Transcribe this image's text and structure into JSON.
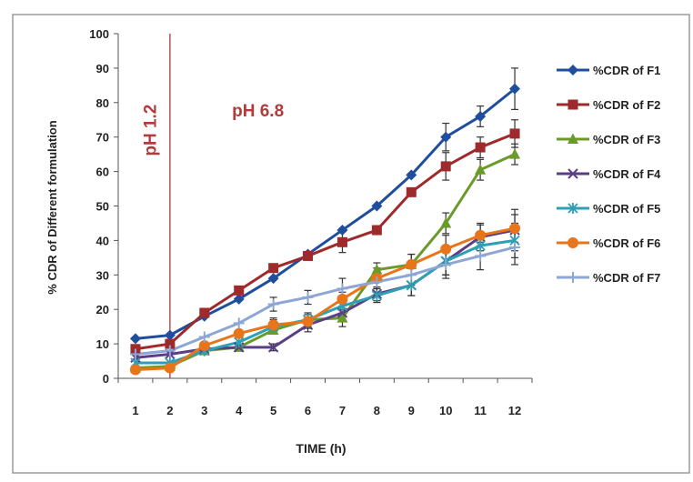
{
  "chart_data": {
    "type": "line",
    "title": "",
    "xlabel": "TIME (h)",
    "ylabel": "% CDR of Different formulation",
    "x": [
      1,
      2,
      3,
      4,
      5,
      6,
      7,
      8,
      9,
      10,
      11,
      12
    ],
    "xlim": [
      0.5,
      12.5
    ],
    "ylim": [
      0,
      100
    ],
    "yticks": [
      0,
      10,
      20,
      30,
      40,
      50,
      60,
      70,
      80,
      90,
      100
    ],
    "grid": false,
    "legend_position": "right",
    "annotations": [
      {
        "text": "pH 1.2",
        "x": 1.6,
        "y": 72
      },
      {
        "text": "pH 6.8",
        "x": 3.8,
        "y": 76
      }
    ],
    "divider_x": 2,
    "series": [
      {
        "name": "%CDR of F1",
        "color": "#1f4e9c",
        "marker": "diamond",
        "values": [
          11.5,
          12.5,
          18,
          23,
          29,
          36,
          43,
          50,
          59,
          70,
          76,
          84
        ],
        "error": [
          0,
          0,
          0,
          0,
          0,
          0,
          0,
          0,
          0,
          4,
          3,
          6
        ]
      },
      {
        "name": "%CDR of F2",
        "color": "#9e2a2b",
        "marker": "square",
        "values": [
          8.5,
          10,
          19,
          25.5,
          32,
          35.5,
          39.5,
          43,
          54,
          61.5,
          67,
          71
        ],
        "error": [
          0,
          0,
          0,
          0,
          0,
          0,
          3,
          0,
          0,
          4,
          3,
          4
        ]
      },
      {
        "name": "%CDR of F3",
        "color": "#6a9a2a",
        "marker": "triangle",
        "values": [
          3,
          3.5,
          8,
          9,
          14,
          17,
          17.5,
          31.5,
          33,
          45,
          60.5,
          65
        ],
        "error": [
          0,
          0,
          0,
          0,
          0,
          0,
          2.5,
          2,
          3,
          3,
          3,
          3
        ]
      },
      {
        "name": "%CDR of F4",
        "color": "#5a3f86",
        "marker": "x",
        "values": [
          6,
          7,
          8.5,
          9,
          9,
          15.5,
          19,
          24.5,
          27,
          34,
          41,
          43
        ],
        "error": [
          0,
          0,
          0,
          0,
          1,
          2,
          2,
          2,
          3,
          4,
          4,
          6
        ]
      },
      {
        "name": "%CDR of F5",
        "color": "#2f9fb5",
        "marker": "star",
        "values": [
          4.5,
          4.5,
          8,
          10.5,
          15,
          17,
          21,
          24,
          27,
          34,
          38.5,
          40
        ],
        "error": [
          0,
          0,
          0,
          0,
          2,
          2,
          2,
          2,
          3,
          4,
          3,
          5
        ]
      },
      {
        "name": "%CDR of F6",
        "color": "#e8751a",
        "marker": "circle",
        "values": [
          2.5,
          3,
          9.5,
          13,
          15.5,
          16.5,
          23,
          29,
          33,
          37.5,
          41.5,
          43.5
        ],
        "error": [
          0,
          0,
          0,
          0,
          2,
          2,
          2,
          3,
          3,
          4,
          3,
          4
        ]
      },
      {
        "name": "%CDR of F7",
        "color": "#8ea6d4",
        "marker": "plus",
        "values": [
          7,
          8,
          12,
          16,
          21.5,
          23.5,
          26,
          28,
          30,
          33,
          35.5,
          38
        ],
        "error": [
          0,
          0,
          0,
          0,
          2,
          2,
          3,
          3,
          3,
          4,
          4,
          5
        ]
      }
    ]
  }
}
